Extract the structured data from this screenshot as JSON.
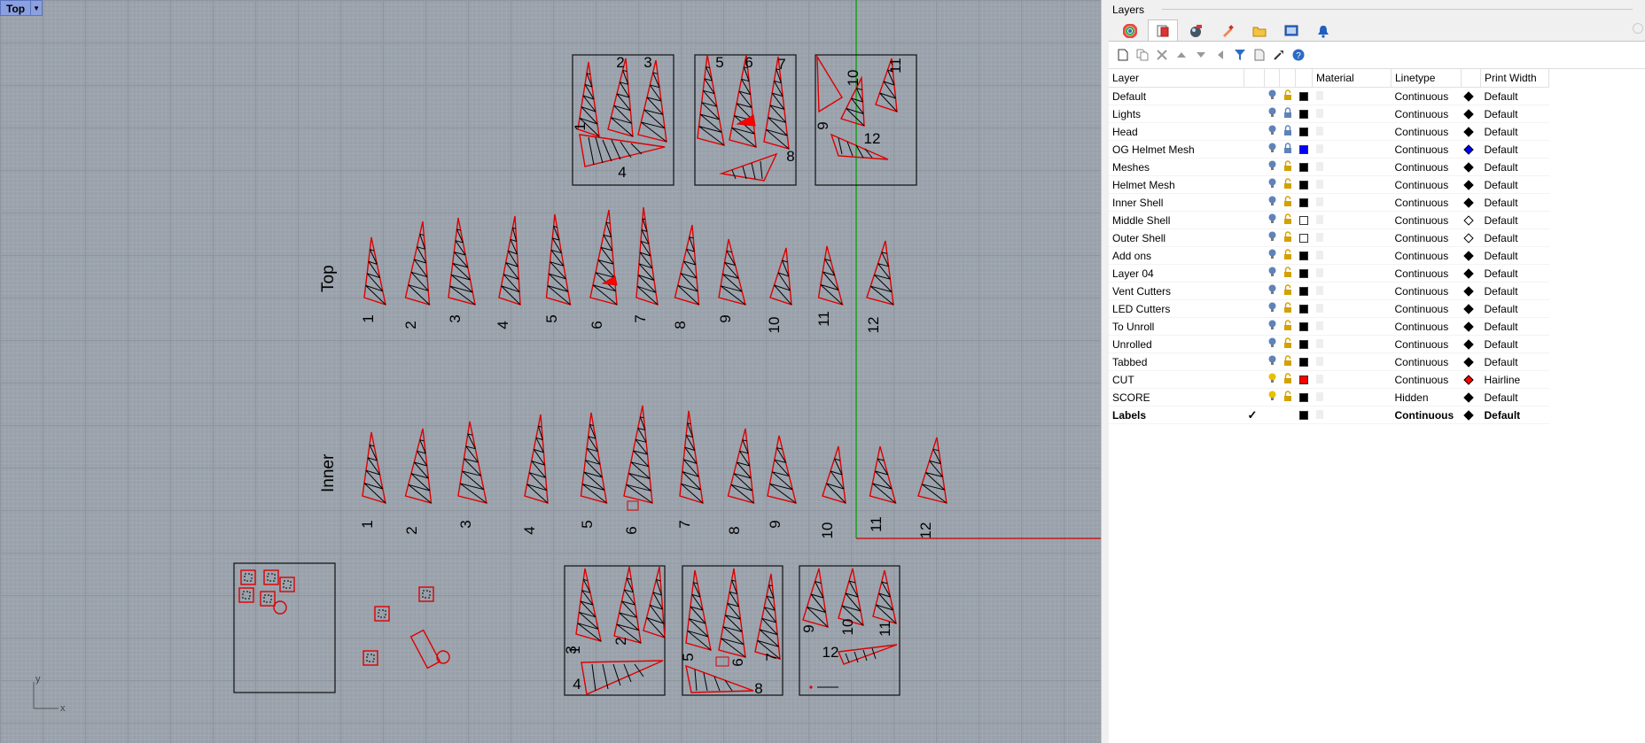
{
  "viewport": {
    "name": "Top",
    "axis_x": "x",
    "axis_y": "y",
    "row_labels": {
      "top": "Top",
      "inner": "Inner"
    },
    "top_numbers": [
      "1",
      "2",
      "3",
      "4",
      "5",
      "6",
      "7",
      "8",
      "9",
      "10",
      "11",
      "12"
    ],
    "inner_numbers": [
      "1",
      "2",
      "3",
      "4",
      "5",
      "6",
      "7",
      "8",
      "9",
      "10",
      "11",
      "12"
    ],
    "sheet_a": [
      "1",
      "2",
      "3",
      "4"
    ],
    "sheet_b": [
      "5",
      "6",
      "7",
      "8"
    ],
    "sheet_c": [
      "9",
      "10",
      "11",
      "12"
    ],
    "sheet_d": [
      "1",
      "2",
      "3",
      "4"
    ],
    "sheet_e": [
      "5",
      "6",
      "7",
      "8"
    ],
    "sheet_f": [
      "9",
      "10",
      "11",
      "12"
    ]
  },
  "panel": {
    "title": "Layers",
    "tabs": [
      "color-wheel-icon",
      "layers-icon",
      "render-icon",
      "brush-icon",
      "folder-icon",
      "display-icon",
      "bell-icon"
    ],
    "toolbar": [
      "new-layer-icon",
      "new-sublayer-icon",
      "delete-icon",
      "move-up-icon",
      "move-down-icon",
      "move-left-icon",
      "filter-icon",
      "copy-icon",
      "tools-icon",
      "help-icon"
    ],
    "columns": {
      "layer": "Layer",
      "material": "Material",
      "linetype": "Linetype",
      "print_width": "Print Width"
    },
    "layers": [
      {
        "name": "Default",
        "bulb": "off",
        "lock": "unlocked",
        "color": "#000000",
        "linetype": "Continuous",
        "print_color": "#000000",
        "print_width": "Default"
      },
      {
        "name": "Lights",
        "bulb": "off",
        "lock": "locked",
        "color": "#000000",
        "linetype": "Continuous",
        "print_color": "#000000",
        "print_width": "Default"
      },
      {
        "name": "Head",
        "bulb": "off",
        "lock": "locked",
        "color": "#000000",
        "linetype": "Continuous",
        "print_color": "#000000",
        "print_width": "Default"
      },
      {
        "name": "OG Helmet Mesh",
        "bulb": "off",
        "lock": "locked",
        "color": "#0000ff",
        "linetype": "Continuous",
        "print_color": "#0000ff",
        "print_width": "Default"
      },
      {
        "name": "Meshes",
        "bulb": "off",
        "lock": "unlocked",
        "color": "#000000",
        "linetype": "Continuous",
        "print_color": "#000000",
        "print_width": "Default"
      },
      {
        "name": "Helmet Mesh",
        "bulb": "off",
        "lock": "unlocked",
        "color": "#000000",
        "linetype": "Continuous",
        "print_color": "#000000",
        "print_width": "Default"
      },
      {
        "name": "Inner Shell",
        "bulb": "off",
        "lock": "unlocked",
        "color": "#000000",
        "linetype": "Continuous",
        "print_color": "#000000",
        "print_width": "Default"
      },
      {
        "name": "Middle Shell",
        "bulb": "off",
        "lock": "unlocked",
        "color": "#ffffff",
        "linetype": "Continuous",
        "print_color": "#ffffff",
        "print_width": "Default"
      },
      {
        "name": "Outer Shell",
        "bulb": "off",
        "lock": "unlocked",
        "color": "#ffffff",
        "linetype": "Continuous",
        "print_color": "#ffffff",
        "print_width": "Default"
      },
      {
        "name": "Add ons",
        "bulb": "off",
        "lock": "unlocked",
        "color": "#000000",
        "linetype": "Continuous",
        "print_color": "#000000",
        "print_width": "Default"
      },
      {
        "name": "Layer 04",
        "bulb": "off",
        "lock": "unlocked",
        "color": "#000000",
        "linetype": "Continuous",
        "print_color": "#000000",
        "print_width": "Default"
      },
      {
        "name": "Vent Cutters",
        "bulb": "off",
        "lock": "unlocked",
        "color": "#000000",
        "linetype": "Continuous",
        "print_color": "#000000",
        "print_width": "Default"
      },
      {
        "name": "LED Cutters",
        "bulb": "off",
        "lock": "unlocked",
        "color": "#000000",
        "linetype": "Continuous",
        "print_color": "#000000",
        "print_width": "Default"
      },
      {
        "name": "To Unroll",
        "bulb": "off",
        "lock": "unlocked",
        "color": "#000000",
        "linetype": "Continuous",
        "print_color": "#000000",
        "print_width": "Default"
      },
      {
        "name": "Unrolled",
        "bulb": "off",
        "lock": "unlocked",
        "color": "#000000",
        "linetype": "Continuous",
        "print_color": "#000000",
        "print_width": "Default"
      },
      {
        "name": "Tabbed",
        "bulb": "off",
        "lock": "unlocked",
        "color": "#000000",
        "linetype": "Continuous",
        "print_color": "#000000",
        "print_width": "Default"
      },
      {
        "name": "CUT",
        "bulb": "on",
        "lock": "unlocked",
        "color": "#ff0000",
        "linetype": "Continuous",
        "print_color": "#ff0000",
        "print_width": "Hairline"
      },
      {
        "name": "SCORE",
        "bulb": "on",
        "lock": "unlocked",
        "color": "#000000",
        "linetype": "Hidden",
        "print_color": "#000000",
        "print_width": "Default"
      },
      {
        "name": "Labels",
        "bulb": "current",
        "lock": "none",
        "color": "#000000",
        "linetype": "Continuous",
        "print_color": "#000000",
        "print_width": "Default",
        "bold": true
      }
    ]
  }
}
